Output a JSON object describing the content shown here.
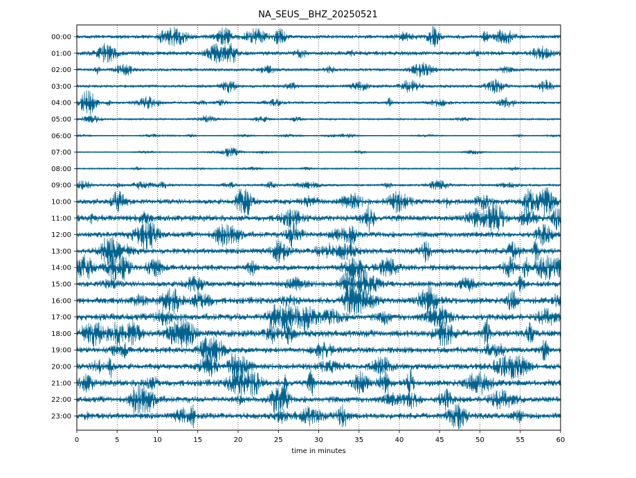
{
  "chart_data": {
    "type": "line",
    "title": "NA_SEUS__BHZ_20250521",
    "xlabel": "time in minutes",
    "ylabel": "",
    "xlim": [
      0,
      60
    ],
    "x_ticks": [
      0,
      5,
      10,
      15,
      20,
      25,
      30,
      35,
      40,
      45,
      50,
      55,
      60
    ],
    "grid": "vertical dotted lines every 5 minutes",
    "trace_color": "#00638f",
    "rows": [
      {
        "label": "00:00",
        "amplitude": 0.22
      },
      {
        "label": "01:00",
        "amplitude": 0.24
      },
      {
        "label": "02:00",
        "amplitude": 0.18
      },
      {
        "label": "03:00",
        "amplitude": 0.18
      },
      {
        "label": "04:00",
        "amplitude": 0.14
      },
      {
        "label": "05:00",
        "amplitude": 0.1
      },
      {
        "label": "06:00",
        "amplitude": 0.05
      },
      {
        "label": "07:00",
        "amplitude": 0.05
      },
      {
        "label": "08:00",
        "amplitude": 0.08
      },
      {
        "label": "09:00",
        "amplitude": 0.14
      },
      {
        "label": "10:00",
        "amplitude": 0.3
      },
      {
        "label": "11:00",
        "amplitude": 0.34
      },
      {
        "label": "12:00",
        "amplitude": 0.32
      },
      {
        "label": "13:00",
        "amplitude": 0.32
      },
      {
        "label": "14:00",
        "amplitude": 0.32
      },
      {
        "label": "15:00",
        "amplitude": 0.32
      },
      {
        "label": "16:00",
        "amplitude": 0.36
      },
      {
        "label": "17:00",
        "amplitude": 0.38
      },
      {
        "label": "18:00",
        "amplitude": 0.38
      },
      {
        "label": "19:00",
        "amplitude": 0.34
      },
      {
        "label": "20:00",
        "amplitude": 0.34
      },
      {
        "label": "21:00",
        "amplitude": 0.36
      },
      {
        "label": "22:00",
        "amplitude": 0.34
      },
      {
        "label": "23:00",
        "amplitude": 0.34
      }
    ]
  }
}
